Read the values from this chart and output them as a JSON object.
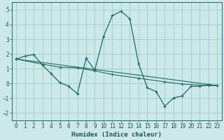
{
  "xlabel": "Humidex (Indice chaleur)",
  "xlim": [
    -0.5,
    23.5
  ],
  "ylim": [
    -2.5,
    5.5
  ],
  "xticks": [
    0,
    1,
    2,
    3,
    4,
    5,
    6,
    7,
    8,
    9,
    10,
    11,
    12,
    13,
    14,
    15,
    16,
    17,
    18,
    19,
    20,
    21,
    22,
    23
  ],
  "yticks": [
    -2,
    -1,
    0,
    1,
    2,
    3,
    4,
    5
  ],
  "bg_color": "#cce8e8",
  "grid_color": "#aacccc",
  "line_color": "#1a6b6b",
  "line1_x": [
    0,
    1,
    2,
    3,
    4,
    5,
    6,
    7,
    8,
    9,
    10,
    11,
    12,
    13,
    14,
    15,
    16,
    17,
    18,
    19,
    20,
    21,
    22,
    23
  ],
  "line1_y": [
    1.65,
    1.85,
    1.95,
    1.25,
    0.65,
    0.05,
    -0.2,
    -0.7,
    1.7,
    0.9,
    3.2,
    4.6,
    4.9,
    4.4,
    1.35,
    -0.3,
    -0.55,
    -1.55,
    -1.0,
    -0.85,
    -0.2,
    -0.2,
    -0.1,
    -0.15
  ],
  "line2_x": [
    0,
    23
  ],
  "line2_y": [
    1.65,
    -0.15
  ],
  "line3_x": [
    0,
    3,
    5,
    7,
    9,
    11,
    14,
    17,
    19,
    22,
    23
  ],
  "line3_y": [
    1.65,
    1.3,
    1.1,
    1.05,
    0.85,
    0.6,
    0.35,
    0.1,
    -0.05,
    -0.15,
    -0.15
  ],
  "xlabel_fontsize": 6.5,
  "tick_fontsize": 5.5
}
